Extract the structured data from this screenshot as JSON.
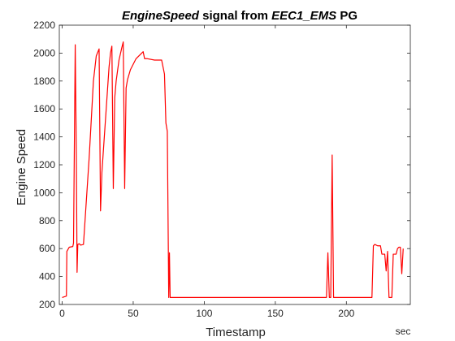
{
  "chart_data": {
    "type": "line",
    "title_parts": [
      {
        "text": "EngineSpeed",
        "italic": true
      },
      {
        "text": " signal from ",
        "italic": false
      },
      {
        "text": "EEC1_EMS",
        "italic": true
      },
      {
        "text": " PG",
        "italic": false
      }
    ],
    "xlabel": "Timestamp",
    "ylabel": "Engine Speed",
    "x_unit": "sec",
    "xlim": [
      -2,
      245
    ],
    "ylim": [
      200,
      2200
    ],
    "x_ticks": [
      0,
      50,
      100,
      150,
      200
    ],
    "y_ticks": [
      200,
      400,
      600,
      800,
      1000,
      1200,
      1400,
      1600,
      1800,
      2000,
      2200
    ],
    "grid": false,
    "line_color": "#ff0000",
    "series": [
      {
        "x": [
          0,
          3,
          3.3,
          5,
          7.5,
          8,
          9.2,
          10,
          10.5,
          11,
          12,
          13,
          15,
          19,
          22,
          24,
          26,
          27,
          28,
          29,
          31,
          33,
          34,
          35,
          36,
          37,
          38,
          40,
          42,
          43,
          44,
          45,
          46,
          48,
          52,
          57,
          58,
          60,
          65,
          70,
          72,
          73,
          74,
          75,
          75.5,
          76,
          77,
          95,
          125,
          160,
          186,
          187,
          188,
          189,
          190,
          191,
          192,
          195,
          218,
          219,
          220,
          222,
          224,
          225,
          226,
          227,
          228,
          229,
          230,
          231,
          232,
          233,
          234,
          235,
          236,
          237,
          238,
          239,
          240
        ],
        "y": [
          250,
          260,
          580,
          610,
          615,
          640,
          2060,
          1250,
          430,
          630,
          635,
          625,
          630,
          1250,
          1800,
          1980,
          2030,
          870,
          1150,
          1300,
          1600,
          1900,
          2000,
          2050,
          1030,
          1680,
          1800,
          1950,
          2040,
          2080,
          1030,
          1750,
          1810,
          1880,
          1960,
          2010,
          1960,
          1960,
          1950,
          1950,
          1850,
          1500,
          1440,
          250,
          570,
          250,
          250,
          250,
          250,
          250,
          250,
          570,
          250,
          250,
          1270,
          250,
          250,
          250,
          250,
          620,
          630,
          620,
          620,
          560,
          560,
          560,
          440,
          580,
          250,
          250,
          250,
          560,
          560,
          560,
          600,
          610,
          610,
          420,
          600
        ]
      }
    ]
  }
}
